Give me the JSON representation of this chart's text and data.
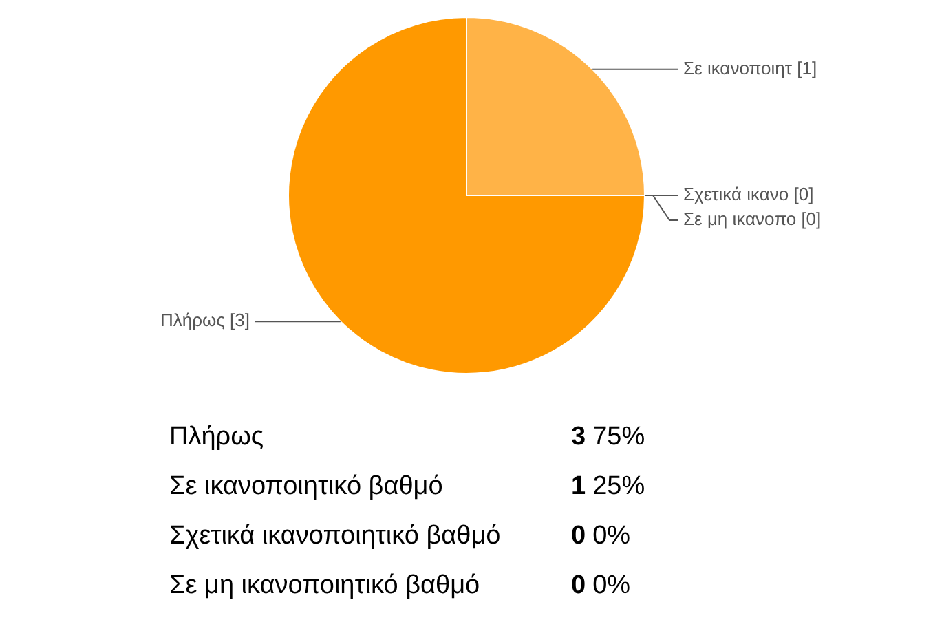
{
  "chart_data": {
    "type": "pie",
    "categories": [
      "Πλήρως",
      "Σε ικανοποιητ",
      "Σχετικά ικανο",
      "Σε μη ικανοπο"
    ],
    "values": [
      3,
      1,
      0,
      0
    ],
    "colors": [
      "#ff9900",
      "#ffb347",
      "#ffa31a",
      "#ffad33"
    ],
    "value_labels": [
      "[3]",
      "[1]",
      "[0]",
      "[0]"
    ],
    "annotations": [
      "Πλήρως",
      "3",
      "75%",
      "Σε ικανοποιητικό βαθμό",
      "1",
      "25%",
      "Σχετικά ικανοποιητικό βαθμό",
      "0",
      "0%",
      "Σε μη ικανοποιητικό βαθμό",
      "0",
      "0%"
    ]
  }
}
